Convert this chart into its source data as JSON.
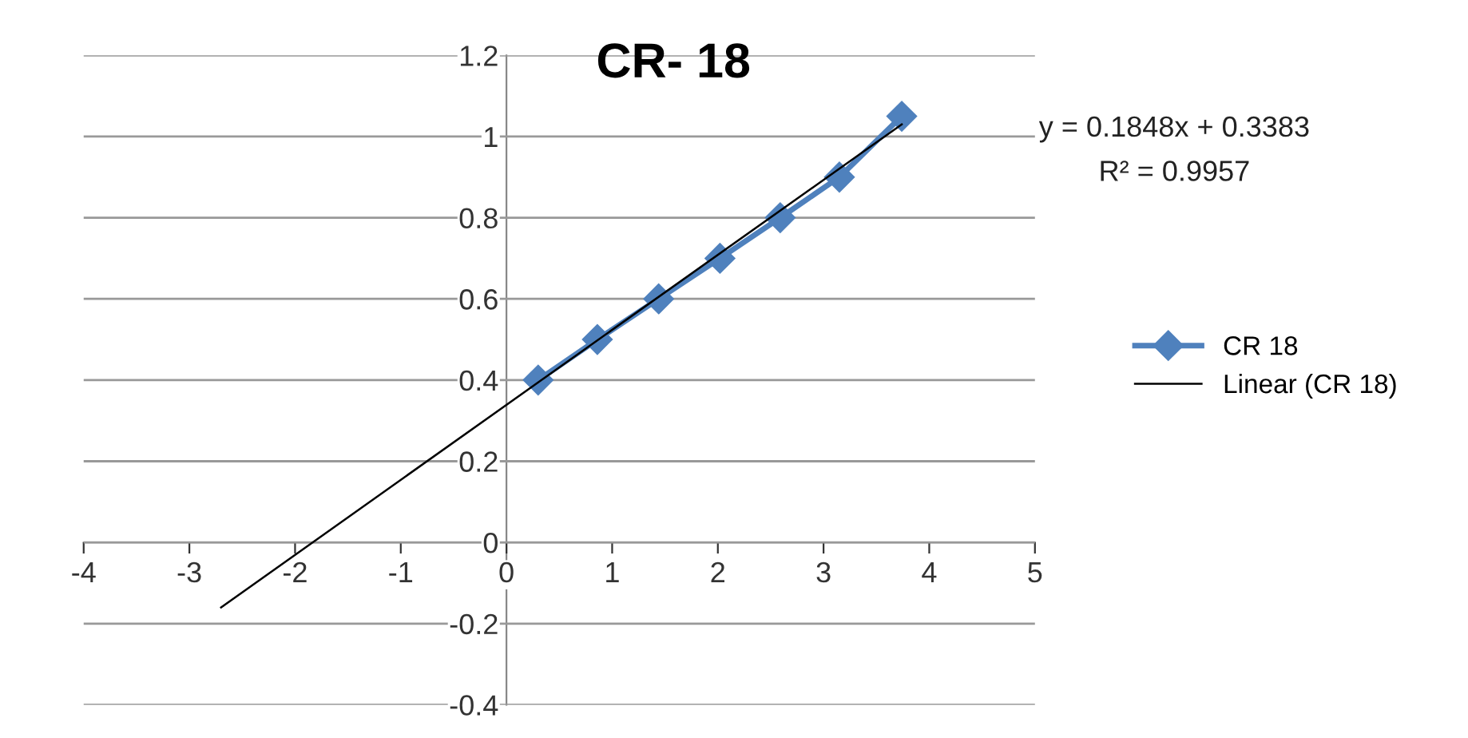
{
  "chart_data": {
    "type": "line",
    "title": "CR- 18",
    "series": [
      {
        "name": "CR 18",
        "color": "#4f81bd",
        "x": [
          0.3,
          0.86,
          1.44,
          2.02,
          2.59,
          3.15,
          3.74
        ],
        "values": [
          0.4,
          0.5,
          0.6,
          0.7,
          0.8,
          0.9,
          1.05
        ],
        "marker": "diamond"
      },
      {
        "name": "Linear (CR 18)",
        "color": "#000000",
        "x": [
          -2.7,
          3.74
        ],
        "values": [
          -0.16,
          1.03
        ],
        "marker": "none"
      }
    ],
    "xlim": [
      -4,
      5
    ],
    "xticks": [
      -4,
      -3,
      -2,
      -1,
      0,
      1,
      2,
      3,
      4,
      5
    ],
    "ylim": [
      -0.4,
      1.2
    ],
    "yticks": [
      -0.4,
      -0.2,
      0,
      0.2,
      0.4,
      0.6,
      0.8,
      1,
      1.2
    ],
    "grid": "y",
    "legend": "right",
    "annotations": [
      "y = 0.1848x + 0.3383",
      "R² = 0.9957"
    ]
  }
}
